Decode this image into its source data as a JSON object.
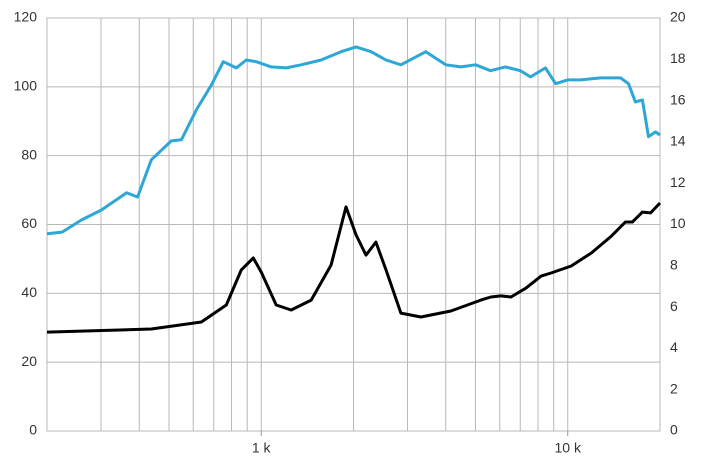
{
  "chart_data": {
    "type": "line",
    "xscale": "log",
    "xlim": [
      200,
      20000
    ],
    "xticks": [
      {
        "value": 1000,
        "label": "1 k"
      },
      {
        "value": 10000,
        "label": "10 k"
      }
    ],
    "xgrid": [
      200,
      300,
      400,
      500,
      600,
      700,
      800,
      900,
      1000,
      2000,
      3000,
      4000,
      5000,
      6000,
      7000,
      8000,
      9000,
      10000,
      20000
    ],
    "ylim": [
      0,
      120
    ],
    "yticks": [
      0,
      20,
      40,
      60,
      80,
      100,
      120
    ],
    "y2lim": [
      0,
      20
    ],
    "y2ticks": [
      0,
      2,
      4,
      6,
      8,
      10,
      12,
      14,
      16,
      18,
      20
    ],
    "grid": true,
    "series": [
      {
        "color": "#2ea6d6",
        "x": [
          200,
          224,
          259,
          301,
          364,
          395,
          438,
          509,
          549,
          614,
          688,
          752,
          829,
          894,
          963,
          1078,
          1207,
          1350,
          1568,
          1822,
          2039,
          2283,
          2553,
          2856,
          3444,
          4000,
          4474,
          5004,
          5597,
          6262,
          7000,
          7560,
          8464,
          9127,
          10000,
          11030,
          12800,
          14870,
          15780,
          16630,
          17520,
          18340,
          19340,
          20000
        ],
        "values": [
          57.3,
          57.8,
          61.3,
          64.2,
          69.2,
          68.0,
          78.8,
          84.3,
          84.6,
          93.3,
          100.6,
          107.3,
          105.5,
          107.8,
          107.3,
          105.8,
          105.5,
          106.4,
          107.8,
          110.2,
          111.6,
          110.2,
          107.8,
          106.4,
          110.2,
          106.4,
          105.8,
          106.4,
          104.7,
          105.8,
          104.7,
          102.9,
          105.5,
          100.9,
          102.0,
          102.0,
          102.6,
          102.6,
          100.9,
          95.6,
          96.2,
          85.5,
          86.9,
          86.0
        ]
      },
      {
        "color": "#000000",
        "axis": "y2",
        "x": [
          200,
          438,
          638,
          769,
          861,
          942,
          1000,
          1119,
          1252,
          1455,
          1690,
          1891,
          2039,
          2197,
          2367,
          2553,
          2856,
          3319,
          4156,
          5205,
          5614,
          6054,
          6529,
          7311,
          8187,
          8828,
          10266,
          11937,
          13880,
          15420,
          16250,
          17520,
          18630,
          20000
        ],
        "values": [
          4.79,
          4.94,
          5.28,
          6.1,
          7.8,
          8.38,
          7.7,
          6.1,
          5.86,
          6.34,
          8.04,
          10.85,
          9.49,
          8.52,
          9.15,
          7.8,
          5.71,
          5.52,
          5.81,
          6.34,
          6.49,
          6.54,
          6.49,
          6.92,
          7.5,
          7.65,
          7.99,
          8.62,
          9.44,
          10.12,
          10.12,
          10.6,
          10.56,
          11.04
        ]
      }
    ]
  }
}
